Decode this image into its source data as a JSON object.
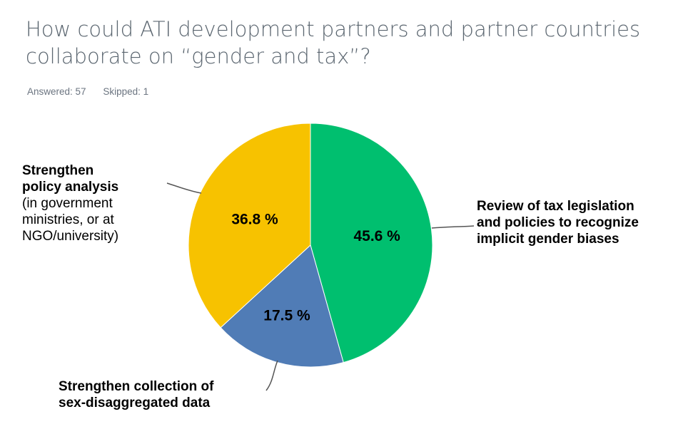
{
  "title_line1": "How could ATI development partners and partner countries",
  "title_line2": "collaborate on “gender and tax”?",
  "answered": "Answered: 57",
  "skipped": "Skipped: 1",
  "chart_data": {
    "type": "pie",
    "title": "How could ATI development partners and partner countries collaborate on “gender and tax”?",
    "start": "12 o'clock, clockwise",
    "slices": [
      {
        "name": "Review of tax legislation and policies to recognize implicit gender biases",
        "value": 45.6,
        "label": "45.6 %",
        "color": "#00bf6f"
      },
      {
        "name": "Strengthen collection of sex-disaggregated data",
        "value": 17.5,
        "label": "17.5 %",
        "color": "#507cb6"
      },
      {
        "name": "Strengthen policy analysis (in government ministries, or at NGO/university)",
        "value": 36.8,
        "label": "36.8 %",
        "color": "#f7c200"
      }
    ]
  },
  "labels": {
    "policy_bold1": "Strengthen",
    "policy_bold2": "policy analysis",
    "policy_sub1": "(in government",
    "policy_sub2": "ministries, or at",
    "policy_sub3": "NGO/university)",
    "review1": "Review of tax legislation",
    "review2": "and policies to recognize",
    "review3": "implicit gender biases",
    "collect1": "Strengthen collection of",
    "collect2": "sex-disaggregated data"
  }
}
